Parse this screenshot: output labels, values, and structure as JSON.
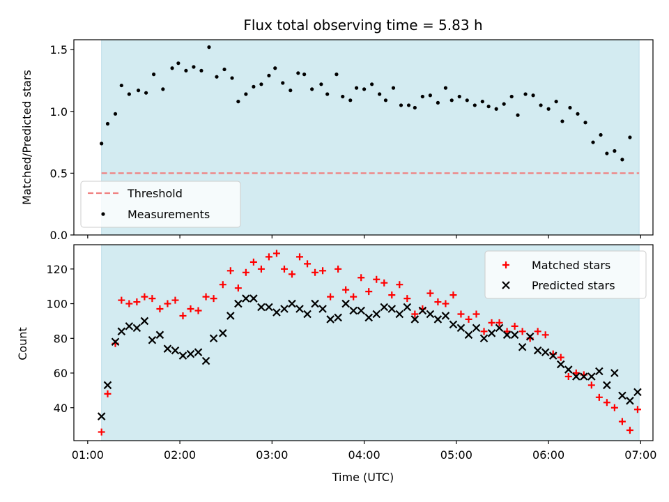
{
  "chart_data": {
    "title": "Flux total observing time = 5.83 h",
    "xlabel": "Time (UTC)",
    "x_ticks": [
      "01:00",
      "02:00",
      "03:00",
      "04:00",
      "05:00",
      "06:00",
      "07:00"
    ],
    "x_tick_minutes": [
      60,
      120,
      180,
      240,
      300,
      360,
      420
    ],
    "xlim_minutes": [
      51,
      428
    ],
    "shaded_span_minutes": [
      69,
      419
    ],
    "shade_color": "#d3ebf1",
    "top": {
      "type": "scatter",
      "ylabel": "Matched/Predicted stars",
      "ylim": [
        0,
        1.58
      ],
      "y_ticks": [
        0.0,
        0.5,
        1.0,
        1.5
      ],
      "y_tick_labels": [
        "0.0",
        "0.5",
        "1.0",
        "1.5"
      ],
      "threshold": {
        "name": "Threshold",
        "value": 0.5,
        "color": "#f08080"
      },
      "series_name": "Measurements",
      "series_color": "#000000",
      "points": [
        [
          69,
          0.74
        ],
        [
          73,
          0.9
        ],
        [
          78,
          0.98
        ],
        [
          82,
          1.21
        ],
        [
          87,
          1.14
        ],
        [
          93,
          1.17
        ],
        [
          98,
          1.15
        ],
        [
          103,
          1.3
        ],
        [
          109,
          1.18
        ],
        [
          115,
          1.35
        ],
        [
          119,
          1.39
        ],
        [
          124,
          1.33
        ],
        [
          129,
          1.36
        ],
        [
          134,
          1.33
        ],
        [
          139,
          1.52
        ],
        [
          144,
          1.28
        ],
        [
          149,
          1.34
        ],
        [
          154,
          1.27
        ],
        [
          158,
          1.08
        ],
        [
          163,
          1.14
        ],
        [
          168,
          1.2
        ],
        [
          173,
          1.22
        ],
        [
          178,
          1.29
        ],
        [
          182,
          1.35
        ],
        [
          187,
          1.23
        ],
        [
          192,
          1.17
        ],
        [
          197,
          1.31
        ],
        [
          201,
          1.3
        ],
        [
          206,
          1.18
        ],
        [
          212,
          1.22
        ],
        [
          216,
          1.14
        ],
        [
          222,
          1.3
        ],
        [
          226,
          1.12
        ],
        [
          231,
          1.09
        ],
        [
          235,
          1.19
        ],
        [
          240,
          1.18
        ],
        [
          245,
          1.22
        ],
        [
          250,
          1.14
        ],
        [
          254,
          1.09
        ],
        [
          259,
          1.19
        ],
        [
          264,
          1.05
        ],
        [
          269,
          1.05
        ],
        [
          273,
          1.03
        ],
        [
          278,
          1.12
        ],
        [
          283,
          1.13
        ],
        [
          288,
          1.07
        ],
        [
          293,
          1.19
        ],
        [
          297,
          1.09
        ],
        [
          302,
          1.12
        ],
        [
          307,
          1.09
        ],
        [
          312,
          1.05
        ],
        [
          317,
          1.08
        ],
        [
          321,
          1.04
        ],
        [
          326,
          1.02
        ],
        [
          331,
          1.06
        ],
        [
          336,
          1.12
        ],
        [
          340,
          0.97
        ],
        [
          345,
          1.14
        ],
        [
          350,
          1.13
        ],
        [
          355,
          1.05
        ],
        [
          360,
          1.02
        ],
        [
          365,
          1.08
        ],
        [
          369,
          0.92
        ],
        [
          374,
          1.03
        ],
        [
          379,
          0.98
        ],
        [
          384,
          0.91
        ],
        [
          389,
          0.75
        ],
        [
          394,
          0.81
        ],
        [
          398,
          0.66
        ],
        [
          403,
          0.68
        ],
        [
          408,
          0.61
        ],
        [
          413,
          0.79
        ]
      ]
    },
    "bottom": {
      "type": "scatter",
      "ylabel": "Count",
      "ylim": [
        21,
        134
      ],
      "y_ticks": [
        40,
        60,
        80,
        100,
        120
      ],
      "y_tick_labels": [
        "40",
        "60",
        "80",
        "100",
        "120"
      ],
      "series": [
        {
          "name": "Matched stars",
          "color": "#ff0000",
          "marker": "plus",
          "points": [
            [
              69,
              26
            ],
            [
              73,
              48
            ],
            [
              78,
              77
            ],
            [
              82,
              102
            ],
            [
              87,
              100
            ],
            [
              92,
              101
            ],
            [
              97,
              104
            ],
            [
              102,
              103
            ],
            [
              107,
              97
            ],
            [
              112,
              100
            ],
            [
              117,
              102
            ],
            [
              122,
              93
            ],
            [
              127,
              97
            ],
            [
              132,
              96
            ],
            [
              137,
              104
            ],
            [
              142,
              103
            ],
            [
              148,
              111
            ],
            [
              153,
              119
            ],
            [
              158,
              109
            ],
            [
              163,
              118
            ],
            [
              168,
              124
            ],
            [
              173,
              120
            ],
            [
              178,
              127
            ],
            [
              183,
              129
            ],
            [
              188,
              120
            ],
            [
              193,
              117
            ],
            [
              198,
              127
            ],
            [
              203,
              123
            ],
            [
              208,
              118
            ],
            [
              213,
              119
            ],
            [
              218,
              104
            ],
            [
              223,
              120
            ],
            [
              228,
              108
            ],
            [
              233,
              104
            ],
            [
              238,
              115
            ],
            [
              243,
              107
            ],
            [
              248,
              114
            ],
            [
              253,
              112
            ],
            [
              258,
              105
            ],
            [
              263,
              111
            ],
            [
              268,
              103
            ],
            [
              273,
              94
            ],
            [
              278,
              97
            ],
            [
              283,
              106
            ],
            [
              288,
              101
            ],
            [
              293,
              100
            ],
            [
              298,
              105
            ],
            [
              303,
              94
            ],
            [
              308,
              91
            ],
            [
              313,
              94
            ],
            [
              318,
              84
            ],
            [
              323,
              89
            ],
            [
              328,
              89
            ],
            [
              333,
              84
            ],
            [
              338,
              87
            ],
            [
              343,
              84
            ],
            [
              348,
              80
            ],
            [
              353,
              84
            ],
            [
              358,
              82
            ],
            [
              363,
              71
            ],
            [
              368,
              69
            ],
            [
              373,
              58
            ],
            [
              378,
              60
            ],
            [
              383,
              59
            ],
            [
              388,
              53
            ],
            [
              393,
              46
            ],
            [
              398,
              43
            ],
            [
              403,
              40
            ],
            [
              408,
              32
            ],
            [
              413,
              27
            ],
            [
              418,
              39
            ]
          ]
        },
        {
          "name": "Predicted stars",
          "color": "#000000",
          "marker": "x",
          "points": [
            [
              69,
              35
            ],
            [
              73,
              53
            ],
            [
              78,
              78
            ],
            [
              82,
              84
            ],
            [
              87,
              87
            ],
            [
              92,
              86
            ],
            [
              97,
              90
            ],
            [
              102,
              79
            ],
            [
              107,
              82
            ],
            [
              112,
              74
            ],
            [
              117,
              73
            ],
            [
              122,
              70
            ],
            [
              127,
              71
            ],
            [
              132,
              72
            ],
            [
              137,
              67
            ],
            [
              142,
              80
            ],
            [
              148,
              83
            ],
            [
              153,
              93
            ],
            [
              158,
              100
            ],
            [
              163,
              103
            ],
            [
              168,
              103
            ],
            [
              173,
              98
            ],
            [
              178,
              98
            ],
            [
              183,
              95
            ],
            [
              188,
              97
            ],
            [
              193,
              100
            ],
            [
              198,
              97
            ],
            [
              203,
              94
            ],
            [
              208,
              100
            ],
            [
              213,
              97
            ],
            [
              218,
              91
            ],
            [
              223,
              92
            ],
            [
              228,
              100
            ],
            [
              233,
              96
            ],
            [
              238,
              96
            ],
            [
              243,
              92
            ],
            [
              248,
              94
            ],
            [
              253,
              98
            ],
            [
              258,
              97
            ],
            [
              263,
              94
            ],
            [
              268,
              98
            ],
            [
              273,
              91
            ],
            [
              278,
              96
            ],
            [
              283,
              94
            ],
            [
              288,
              91
            ],
            [
              293,
              93
            ],
            [
              298,
              88
            ],
            [
              303,
              86
            ],
            [
              308,
              82
            ],
            [
              313,
              86
            ],
            [
              318,
              80
            ],
            [
              323,
              83
            ],
            [
              328,
              86
            ],
            [
              333,
              82
            ],
            [
              338,
              82
            ],
            [
              343,
              75
            ],
            [
              348,
              81
            ],
            [
              353,
              73
            ],
            [
              358,
              72
            ],
            [
              363,
              70
            ],
            [
              368,
              65
            ],
            [
              373,
              62
            ],
            [
              378,
              58
            ],
            [
              383,
              58
            ],
            [
              388,
              58
            ],
            [
              393,
              61
            ],
            [
              398,
              53
            ],
            [
              403,
              60
            ],
            [
              408,
              47
            ],
            [
              413,
              44
            ],
            [
              418,
              49
            ]
          ]
        }
      ]
    }
  }
}
